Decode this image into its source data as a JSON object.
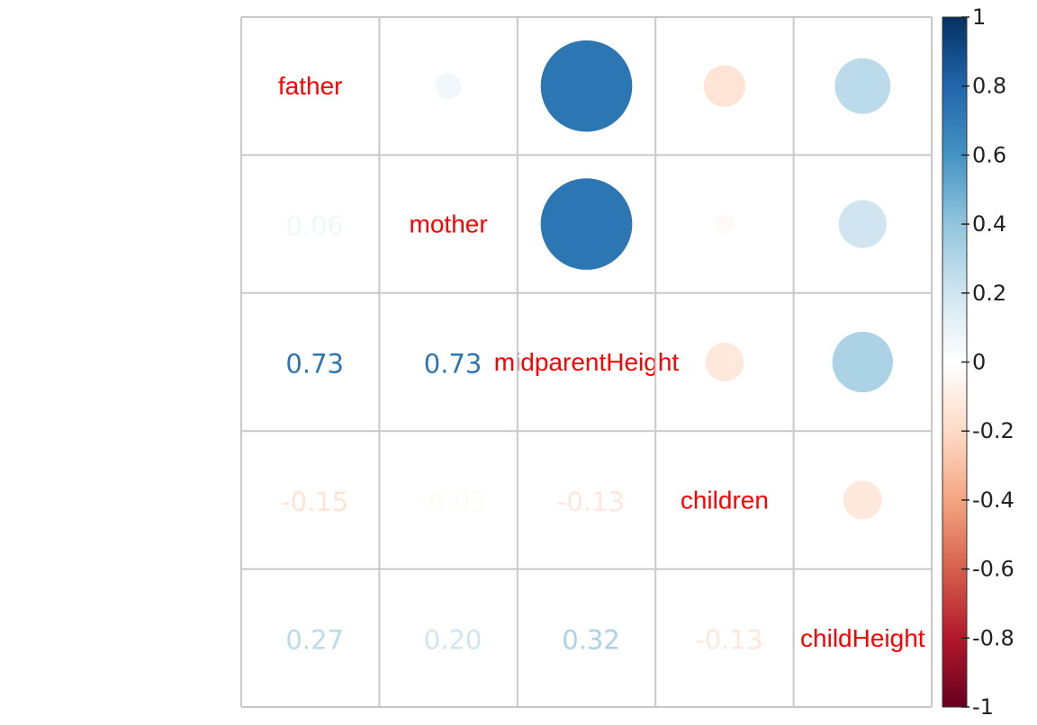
{
  "chart_data": {
    "type": "heatmap",
    "variables": [
      "father",
      "mother",
      "midparentHeight",
      "children",
      "childHeight"
    ],
    "matrix": [
      [
        1.0,
        0.06,
        0.73,
        -0.15,
        0.27
      ],
      [
        0.06,
        1.0,
        0.73,
        -0.03,
        0.2
      ],
      [
        0.73,
        0.73,
        1.0,
        -0.13,
        0.32
      ],
      [
        -0.15,
        -0.03,
        -0.13,
        1.0,
        -0.13
      ],
      [
        0.27,
        0.2,
        0.32,
        -0.13,
        1.0
      ]
    ],
    "lower_labels": [
      [
        "",
        "",
        "",
        "",
        ""
      ],
      [
        "0.06",
        "",
        "",
        "",
        ""
      ],
      [
        "0.73",
        "0.73",
        "",
        "",
        ""
      ],
      [
        "-0.15",
        "-0.03",
        "-0.13",
        "",
        ""
      ],
      [
        "0.27",
        "0.20",
        "0.32",
        "-0.13",
        ""
      ]
    ],
    "upper_method": "circle",
    "lower_method": "number",
    "diagonal": "labels",
    "grid": true,
    "color_scale": {
      "min": -1,
      "max": 1,
      "colors": [
        "#67001F",
        "#B2182B",
        "#D6604D",
        "#F4A582",
        "#FDDBC7",
        "#FFFFFF",
        "#D1E5F0",
        "#92C5DE",
        "#4393C3",
        "#2166AC",
        "#053061"
      ],
      "ticks": [
        "1",
        "0.8",
        "0.6",
        "0.4",
        "0.2",
        "0",
        "-0.2",
        "-0.4",
        "-0.6",
        "-0.8",
        "-1"
      ],
      "legend_position": "right"
    },
    "label_color": "#FF0000"
  }
}
